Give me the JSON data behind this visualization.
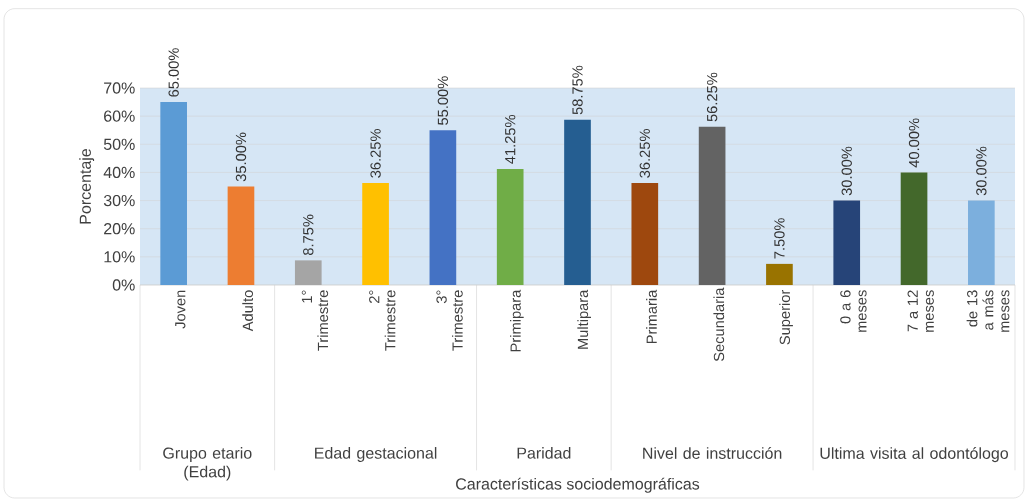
{
  "chart_data": {
    "type": "bar",
    "ylabel": "Porcentaje",
    "categories": [
      "Joven",
      "Adulto",
      "1° Trimestre",
      "2° Trimestre",
      "3° Trimestre",
      "Primipara",
      "Multipara",
      "Primaria",
      "Secundaria",
      "Superior",
      "0 a 6 meses",
      "7 a 12 meses",
      "de 13 a más meses"
    ],
    "values": [
      65,
      35,
      8.75,
      36.25,
      55,
      41.25,
      58.75,
      36.25,
      56.25,
      7.5,
      30,
      40,
      30
    ],
    "colors": [
      "#5b9bd5",
      "#ed7d31",
      "#a5a5a5",
      "#ffc000",
      "#4472c4",
      "#70ad47",
      "#255e91",
      "#9e480e",
      "#636363",
      "#997300",
      "#264478",
      "#43682b",
      "#7cafdd"
    ],
    "value_labels": [
      "65.00%",
      "35.00%",
      "8.75%",
      "36.25%",
      "55.00%",
      "41.25%",
      "58.75%",
      "36.25%",
      "56.25%",
      "7.50%",
      "30.00%",
      "40.00%",
      "30.00%"
    ],
    "ylim": [
      0,
      70
    ],
    "yticks": [
      {
        "value": 0,
        "label": "0%"
      },
      {
        "value": 10,
        "label": "10%"
      },
      {
        "value": 20,
        "label": "20%"
      },
      {
        "value": 30,
        "label": "30%"
      },
      {
        "value": 40,
        "label": "40%"
      },
      {
        "value": 50,
        "label": "50%"
      },
      {
        "value": 60,
        "label": "60%"
      },
      {
        "value": 70,
        "label": "70%"
      }
    ],
    "grid": "y",
    "annotations": [
      "Grupo etario (Edad)",
      "Edad gestacional",
      "Paridad",
      "Nivel de instrucción",
      "Ultima visita al odontólogo",
      "Características sociodemográficas"
    ]
  }
}
